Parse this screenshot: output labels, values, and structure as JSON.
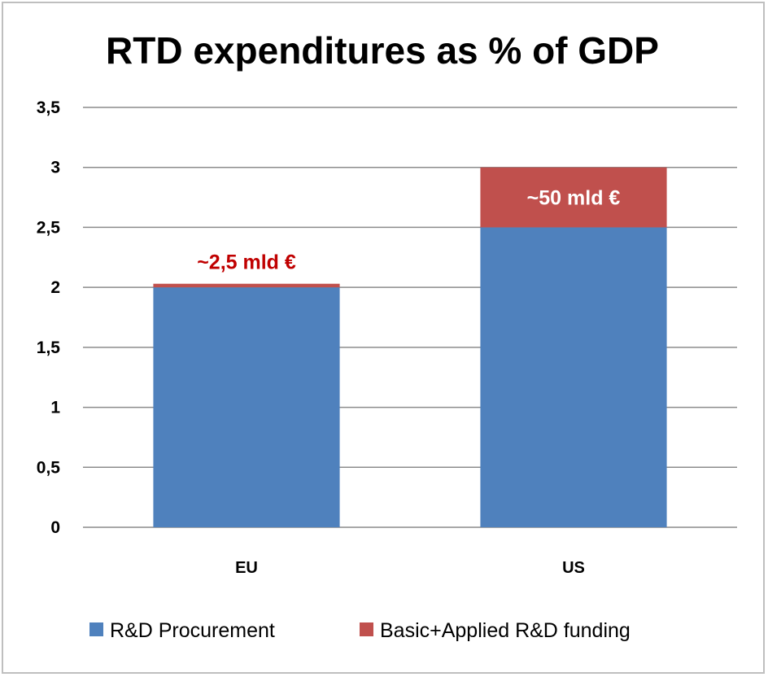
{
  "chart_data": {
    "type": "bar",
    "stacked": true,
    "title": "RTD expenditures as % of GDP",
    "categories": [
      "EU",
      "US"
    ],
    "series": [
      {
        "name": "R&D Procurement",
        "values": [
          2.0,
          2.5
        ],
        "color": "#4f81bd"
      },
      {
        "name": "Basic+Applied R&D funding",
        "values": [
          0.03,
          0.5
        ],
        "color": "#c0504d"
      }
    ],
    "ylim": [
      0,
      3.5
    ],
    "yticks": [
      "0",
      "0,5",
      "1",
      "1,5",
      "2",
      "2,5",
      "3",
      "3,5"
    ],
    "grid": true,
    "legend_position": "bottom",
    "annotations": [
      {
        "category": "EU",
        "text": "~2,5 mld €",
        "color": "#c00000"
      },
      {
        "category": "US",
        "text": "~50 mld €",
        "color": "#ffffff"
      }
    ]
  }
}
